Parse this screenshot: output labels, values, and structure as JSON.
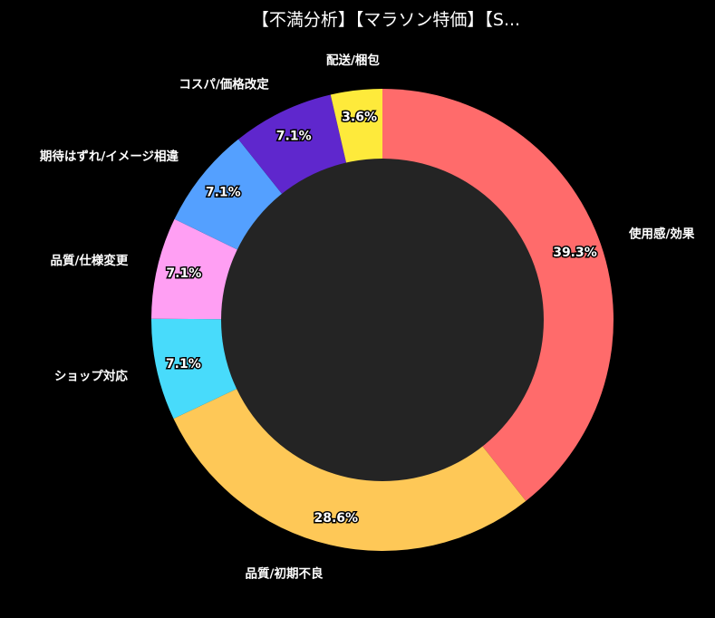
{
  "chart_data": {
    "type": "pie",
    "title": "【不満分析】【マラソン特価】【S...",
    "donut": true,
    "hole_color": "#242424",
    "background": "#000000",
    "slices": [
      {
        "label": "使用感/効果",
        "value": 39.3,
        "display": "39.3%",
        "color": "#ff6b6b"
      },
      {
        "label": "品質/初期不良",
        "value": 28.6,
        "display": "28.6%",
        "color": "#fec857"
      },
      {
        "label": "ショップ対応",
        "value": 7.1,
        "display": "7.1%",
        "color": "#48dbfb"
      },
      {
        "label": "品質/仕様変更",
        "value": 7.1,
        "display": "7.1%",
        "color": "#ff9ff3"
      },
      {
        "label": "期待はずれ/イメージ相違",
        "value": 7.1,
        "display": "7.1%",
        "color": "#54a0ff"
      },
      {
        "label": "コスパ/価格改定",
        "value": 7.1,
        "display": "7.1%",
        "color": "#5f27cd"
      },
      {
        "label": "配送/梱包",
        "value": 3.6,
        "display": "3.6%",
        "color": "#feea3b"
      }
    ]
  }
}
